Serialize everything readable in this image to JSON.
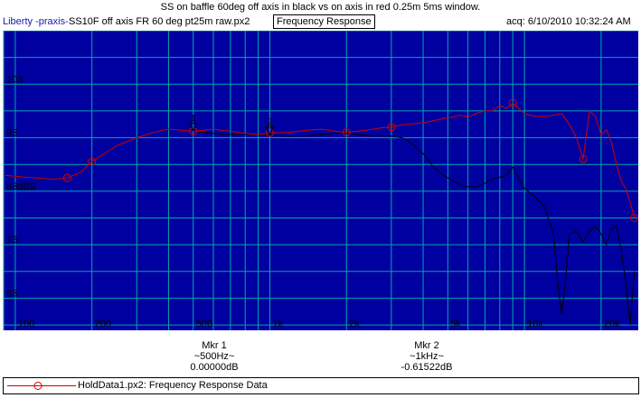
{
  "caption": "SS on baffle 60deg off axis in black vs on axis in red 0.25m 5ms window.",
  "header": {
    "app": "Liberty -praxis-",
    "file": "SS10F off axis FR 60 deg pt25m raw.px2",
    "mode": "Frequency Response",
    "acq": "acq: 6/10/2010 10:32:24 AM"
  },
  "colors": {
    "plot_bg": "#0000a0",
    "grid": "#00a8a8",
    "black_trace": "#000000",
    "red_trace": "#d00000"
  },
  "markers": [
    {
      "id": "1",
      "name": "Mkr 1",
      "freq": "~500Hz~",
      "value": "0.00000dB"
    },
    {
      "id": "2",
      "name": "Mkr 2",
      "freq": "~1kHz~",
      "value": "-0.61522dB"
    }
  ],
  "legend": {
    "text": "HoldData1.px2:  Frequency Response Data"
  },
  "chart_data": {
    "type": "line",
    "x_scale": "log",
    "xlim": [
      90,
      28000
    ],
    "ylim": [
      57,
      113
    ],
    "x_ticks": [
      {
        "value": 100,
        "label": "100"
      },
      {
        "value": 200,
        "label": "200"
      },
      {
        "value": 500,
        "label": "500"
      },
      {
        "value": 1000,
        "label": "1k"
      },
      {
        "value": 2000,
        "label": "2k"
      },
      {
        "value": 5000,
        "label": "5k"
      },
      {
        "value": 10000,
        "label": "10k"
      },
      {
        "value": 20000,
        "label": "20k"
      }
    ],
    "y_ticks": [
      {
        "value": 103,
        "label": "103"
      },
      {
        "value": 93,
        "label": "93"
      },
      {
        "value": 83,
        "label": "83dBS"
      },
      {
        "value": 73,
        "label": "73"
      },
      {
        "value": 63,
        "label": "63"
      }
    ],
    "grid": true,
    "series": [
      {
        "color": "#000000",
        "x": [
          90,
          100,
          110,
          120,
          140,
          160,
          180,
          200,
          250,
          300,
          350,
          400,
          450,
          500,
          600,
          700,
          800,
          900,
          1000,
          1200,
          1400,
          1600,
          1800,
          2000,
          2200,
          2400,
          2700,
          3000,
          3300,
          3600,
          4000,
          4400,
          4800,
          5200,
          5600,
          6000,
          6500,
          7000,
          7500,
          8000,
          8500,
          9000,
          10000,
          11000,
          12000,
          13000,
          13500,
          14000,
          14500,
          15000,
          16000,
          17000,
          18000,
          19000,
          20000,
          21000,
          22000,
          23000,
          24000,
          25000,
          26000,
          27000
        ],
        "y": [
          86,
          85.8,
          85.6,
          85.5,
          85.2,
          85.5,
          86.5,
          88.5,
          91.5,
          93.0,
          94.0,
          94.6,
          94.4,
          94.2,
          93.8,
          93.6,
          93.6,
          93.6,
          93.5,
          93.3,
          93.4,
          93.6,
          93.8,
          93.8,
          93.6,
          93.4,
          93.4,
          93.3,
          93.0,
          92.0,
          90.0,
          87.5,
          86.0,
          85.0,
          84.2,
          83.8,
          83.8,
          84.5,
          85.3,
          85.6,
          86.0,
          87.5,
          83.5,
          82.0,
          80.0,
          75.0,
          66.0,
          60.0,
          66.0,
          75.0,
          75.5,
          73.5,
          75.5,
          76.5,
          75.0,
          73.0,
          76.0,
          76.5,
          72.0,
          66.0,
          58.0,
          68.0
        ]
      },
      {
        "color": "#d00000",
        "x": [
          90,
          100,
          110,
          120,
          140,
          160,
          180,
          200,
          250,
          300,
          350,
          400,
          450,
          500,
          600,
          700,
          800,
          900,
          1000,
          1200,
          1400,
          1600,
          1800,
          2000,
          2200,
          2400,
          2700,
          3000,
          3300,
          3600,
          4000,
          4400,
          4800,
          5200,
          5600,
          6000,
          6500,
          7000,
          7500,
          8000,
          8500,
          9000,
          10000,
          11000,
          12000,
          13000,
          14000,
          15000,
          16000,
          17000,
          18000,
          19000,
          20000,
          21000,
          22000,
          23000,
          24000,
          25000,
          26000,
          27000
        ],
        "y": [
          86,
          85.8,
          85.6,
          85.5,
          85.2,
          85.5,
          86.5,
          88.5,
          91.5,
          93.0,
          94.0,
          94.6,
          94.4,
          94.2,
          94.6,
          94.2,
          93.8,
          93.6,
          93.9,
          94.0,
          94.4,
          94.6,
          94.2,
          94.0,
          94.2,
          94.4,
          94.8,
          95.0,
          95.4,
          95.6,
          95.8,
          96.2,
          96.6,
          96.8,
          97.2,
          96.8,
          97.6,
          98.0,
          98.0,
          99.0,
          98.5,
          99.5,
          97.5,
          97.0,
          97.0,
          97.2,
          97.5,
          95.5,
          93.0,
          89.0,
          98.0,
          97.0,
          93.5,
          94.5,
          92.0,
          88.0,
          85.0,
          83.5,
          81.0,
          78.0
        ],
        "marker_x": [
          160,
          200,
          500,
          1000,
          2000,
          3000,
          9000,
          17000,
          27000
        ]
      }
    ],
    "markers": [
      {
        "label": "1",
        "x": 500
      },
      {
        "label": "2",
        "x": 1000
      }
    ]
  }
}
